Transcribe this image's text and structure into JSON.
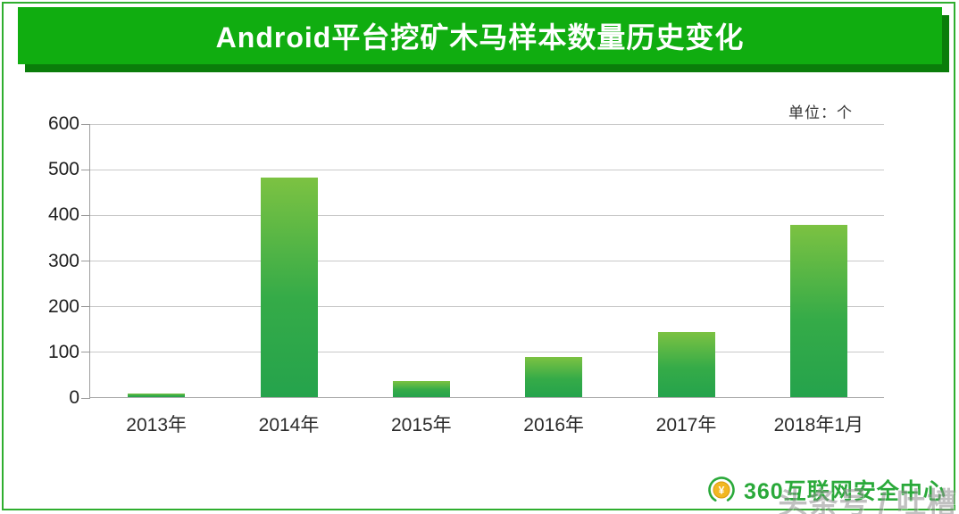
{
  "banner": {
    "title": "Android平台挖矿木马样本数量历史变化"
  },
  "chart_data": {
    "type": "bar",
    "title": "Android平台挖矿木马样本数量历史变化",
    "unit_label": "单位：个",
    "categories": [
      "2013年",
      "2014年",
      "2015年",
      "2016年",
      "2017年",
      "2018年1月"
    ],
    "values": [
      8,
      480,
      35,
      88,
      143,
      378
    ],
    "xlabel": "",
    "ylabel": "",
    "ylim": [
      0,
      600
    ],
    "yticks": [
      0,
      100,
      200,
      300,
      400,
      500,
      600
    ],
    "grid": true,
    "legend": "none"
  },
  "footer": {
    "logo_icon": "360-security-logo-icon",
    "logo_text": "360互联网安全中心",
    "watermark": "头条号 / 吐槽"
  },
  "colors": {
    "banner_green": "#10ad10",
    "banner_shadow": "#0a7d0a",
    "frame_border": "#2fae2f",
    "grid_line": "#c9c9c9",
    "axis_line": "#9e9e9e",
    "label_color": "#2b2b2b",
    "logo_green": "#2aa93a",
    "bar_top": "#7cc242",
    "bar_bottom": "#25a34c"
  }
}
